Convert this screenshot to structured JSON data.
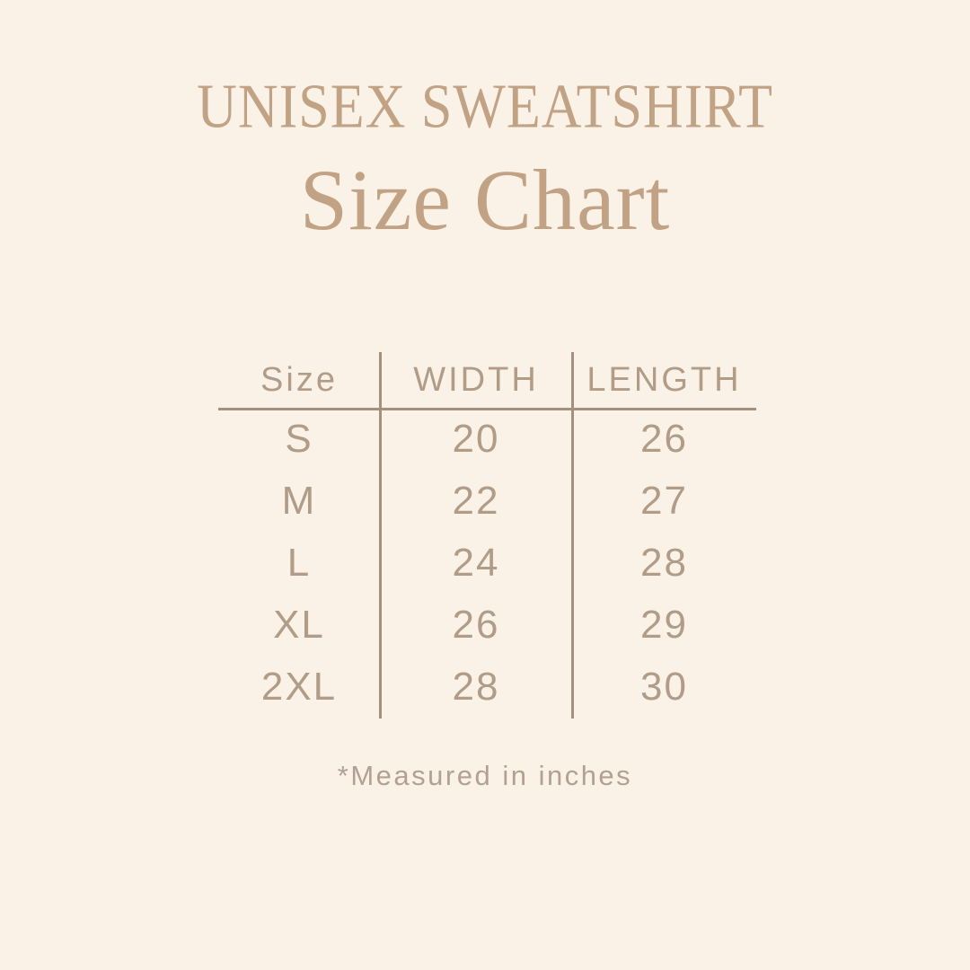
{
  "header": {
    "eyebrow": "UNISEX SWEATSHIRT",
    "title": "Size Chart"
  },
  "chart_data": {
    "type": "table",
    "title": "UNISEX SWEATSHIRT Size Chart",
    "columns": [
      "Size",
      "WIDTH",
      "LENGTH"
    ],
    "rows": [
      [
        "S",
        20,
        26
      ],
      [
        "M",
        22,
        27
      ],
      [
        "L",
        24,
        28
      ],
      [
        "XL",
        26,
        29
      ],
      [
        "2XL",
        28,
        30
      ]
    ],
    "units": "inches",
    "footnote": "*Measured in inches"
  },
  "colors": {
    "background": "#fbf2e7",
    "title": "#c2a284",
    "table-text": "#b09c87",
    "line": "#a4907e",
    "footnote": "#b2a192"
  }
}
